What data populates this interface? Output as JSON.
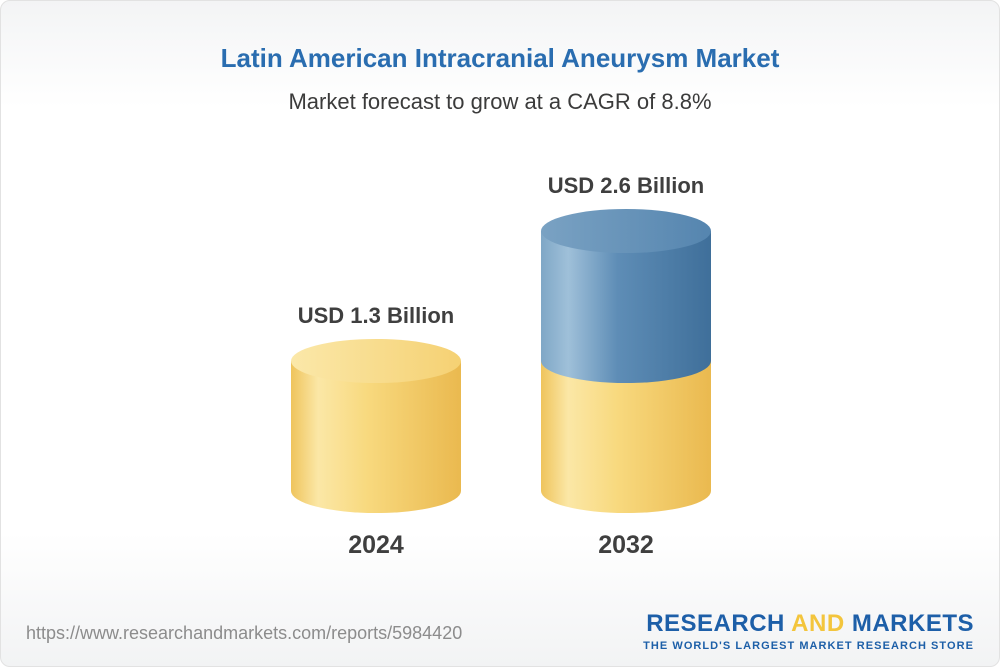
{
  "chart_data": {
    "type": "bar",
    "variant": "3d-stacked-cylinder",
    "title": "Latin American Intracranial Aneurysm Market",
    "subtitle": "Market forecast to grow at a CAGR of 8.8%",
    "cagr_percent": 8.8,
    "unit": "USD Billion",
    "categories": [
      "2024",
      "2032"
    ],
    "values": [
      1.3,
      2.6
    ],
    "value_labels": [
      "USD 1.3 Billion",
      "USD 2.6 Billion"
    ],
    "ylim": [
      0,
      2.6
    ],
    "grid": false,
    "legend_position": "none",
    "bars": [
      {
        "category": "2024",
        "total": 1.3,
        "label": "USD 1.3 Billion",
        "segments": [
          {
            "value": 1.3,
            "palette": "gradYellow"
          }
        ]
      },
      {
        "category": "2032",
        "total": 2.6,
        "label": "USD 2.6 Billion",
        "segments": [
          {
            "value": 1.3,
            "palette": "gradYellow"
          },
          {
            "value": 1.3,
            "palette": "gradBlue"
          }
        ]
      }
    ],
    "colors": {
      "yellow_main": "#F7D67A",
      "blue_main": "#5B8AB4",
      "gradYellowBody": [
        [
          "0%",
          "#EFC45C"
        ],
        [
          "16%",
          "#FBE7A6"
        ],
        [
          "45%",
          "#F8D97E"
        ],
        [
          "100%",
          "#EAB94F"
        ]
      ],
      "gradYellowTop": [
        [
          "0%",
          "#FBE8A9"
        ],
        [
          "100%",
          "#F5D173"
        ]
      ],
      "gradBlueBody": [
        [
          "0%",
          "#7FA7C6"
        ],
        [
          "16%",
          "#9FC0D9"
        ],
        [
          "45%",
          "#5E8DB6"
        ],
        [
          "100%",
          "#3F6F9A"
        ]
      ],
      "gradBlueTop": [
        [
          "0%",
          "#7AA2C3"
        ],
        [
          "100%",
          "#5585AF"
        ]
      ]
    }
  },
  "footer": {
    "url": "https://www.researchandmarkets.com/reports/5984420",
    "logo": {
      "research": "RESEARCH",
      "and": "AND",
      "markets": "MARKETS",
      "tagline": "THE WORLD'S LARGEST MARKET RESEARCH STORE"
    }
  },
  "theme": {
    "title_color": "#2A6DB0",
    "subtitle_color": "#3B3B3B",
    "label_color": "#3F3F3F",
    "url_color": "#8C8C8C",
    "logo_blue": "#1D5FA8",
    "logo_yellow": "#F3C53C"
  }
}
